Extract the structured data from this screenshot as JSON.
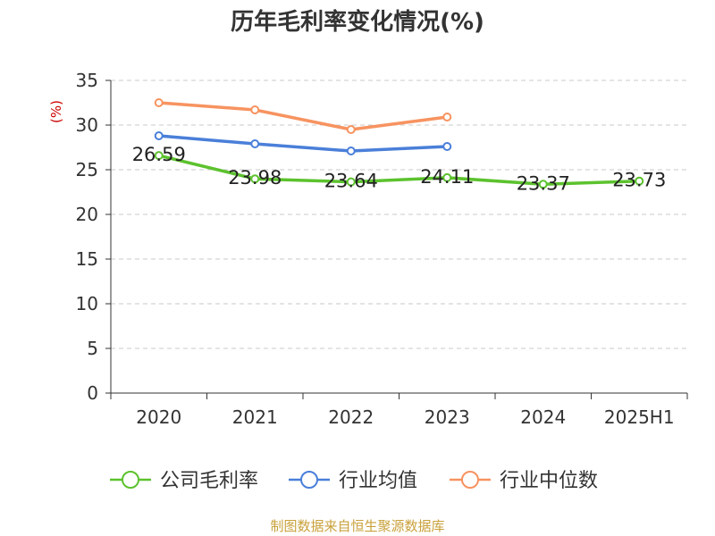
{
  "chart_data": {
    "type": "line",
    "title": "历年毛利率变化情况(%)",
    "ylabel": "(%)",
    "xlabel": "",
    "ylim": [
      0,
      35
    ],
    "yticks": [
      0,
      5,
      10,
      15,
      20,
      25,
      30,
      35
    ],
    "categories": [
      "2020",
      "2021",
      "2022",
      "2023",
      "2024",
      "2025H1"
    ],
    "grid": true,
    "legend_position": "bottom",
    "series": [
      {
        "name": "公司毛利率",
        "color": "#5cc22e",
        "values": [
          26.59,
          23.98,
          23.64,
          24.11,
          23.37,
          23.73
        ],
        "labels": [
          "26.59",
          "23.98",
          "23.64",
          "24.11",
          "23.37",
          "23.73"
        ]
      },
      {
        "name": "行业均值",
        "color": "#4a7fd9",
        "values": [
          28.8,
          27.9,
          27.1,
          27.6,
          null,
          null
        ]
      },
      {
        "name": "行业中位数",
        "color": "#f79360",
        "values": [
          32.5,
          31.7,
          29.5,
          30.9,
          null,
          null
        ]
      }
    ]
  },
  "source": "制图数据来自恒生聚源数据库"
}
